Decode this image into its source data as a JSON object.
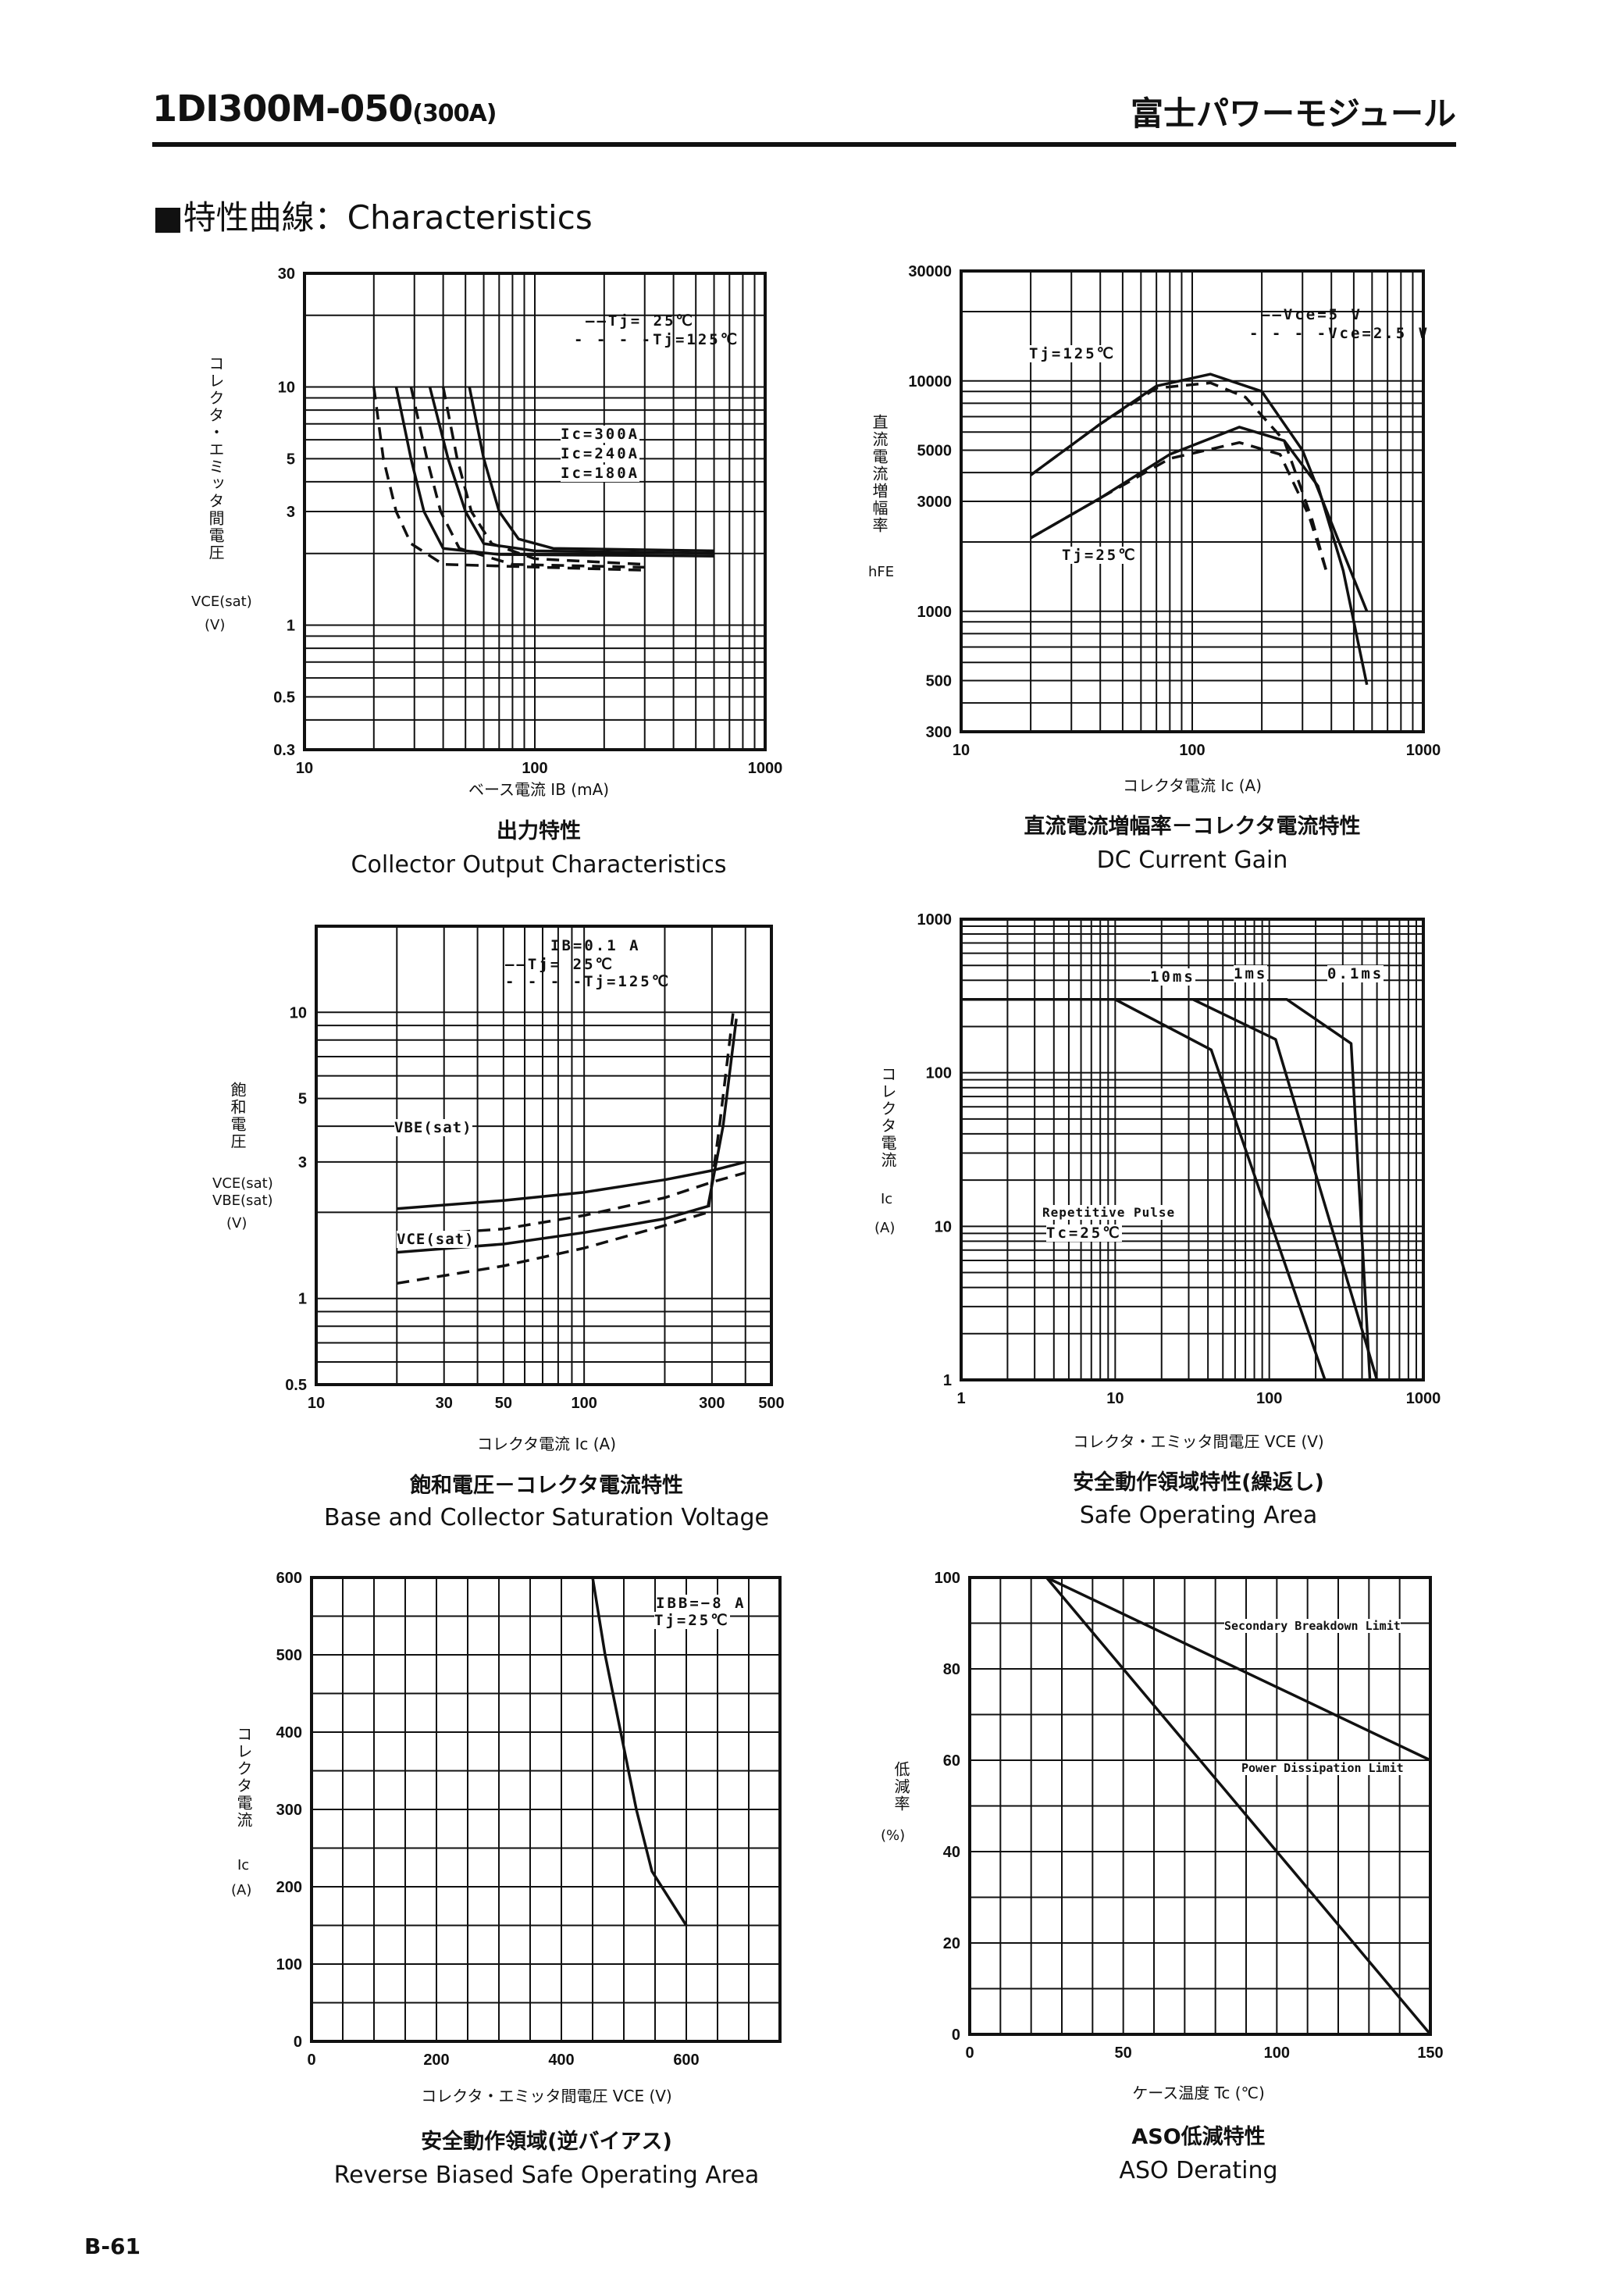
{
  "header": {
    "title": "1DI300M-050",
    "title_suffix": "(300A)",
    "brand": "富士パワーモジュール"
  },
  "section": {
    "title": "■特性曲線：Characteristics"
  },
  "footer": {
    "page": "B-61"
  },
  "charts": [
    {
      "title_jp": "出力特性",
      "title_en": "Collector Output Characteristics",
      "xlabel": "ベース電流 IB (mA)",
      "ylabel_jp": "コレクタ・エミッタ間電圧",
      "ylabel_sym": "VCE(sat)",
      "ylabel_unit": "(V)",
      "legend": [
        "——Tj=  25℃",
        "- - - -Tj=125℃"
      ],
      "annotations": [
        "Ic=300A",
        "Ic=240A",
        "Ic=180A"
      ]
    },
    {
      "title_jp": "直流電流増幅率－コレクタ電流特性",
      "title_en": "DC Current Gain",
      "xlabel": "コレクタ電流 Ic (A)",
      "ylabel_jp": "直流電流増幅率",
      "ylabel_sym": "hFE",
      "ylabel_unit": "",
      "legend": [
        "——Vce=5 V",
        "- - - -Vce=2.5 V"
      ],
      "annotations": [
        "Tj=125℃",
        "Tj=25℃"
      ]
    },
    {
      "title_jp": "飽和電圧－コレクタ電流特性",
      "title_en": "Base and Collector Saturation Voltage",
      "xlabel": "コレクタ電流 Ic (A)",
      "ylabel_jp": "飽和電圧",
      "ylabel_sym": "VCE(sat) VBE(sat)",
      "ylabel_unit": "(V)",
      "legend": [
        "IB=0.1 A",
        "——Tj=  25℃",
        "- - - -Tj=125℃"
      ],
      "annotations": [
        "VBE(sat)",
        "VCE(sat)"
      ]
    },
    {
      "title_jp": "安全動作領域特性(繰返し)",
      "title_en": "Safe Operating Area",
      "xlabel": "コレクタ・エミッタ間電圧 VCE (V)",
      "ylabel_jp": "コレクタ電流",
      "ylabel_sym": "Ic",
      "ylabel_unit": "(A)",
      "legend": [
        "Repetitive Pulse",
        "Tc=25℃"
      ],
      "annotations": [
        "10ms",
        "1ms",
        "0.1ms"
      ]
    },
    {
      "title_jp": "安全動作領域(逆バイアス)",
      "title_en": "Reverse Biased Safe Operating Area",
      "xlabel": "コレクタ・エミッタ間電圧 VCE (V)",
      "ylabel_jp": "コレクタ電流",
      "ylabel_sym": "Ic",
      "ylabel_unit": "(A)",
      "legend": [
        "IBB=−8 A",
        "Tj=25℃"
      ],
      "annotations": []
    },
    {
      "title_jp": "ASO低減特性",
      "title_en": "ASO Derating",
      "xlabel": "ケース温度 Tc (℃)",
      "ylabel_jp": "低減率",
      "ylabel_sym": "",
      "ylabel_unit": "(%)",
      "legend": [],
      "annotations": [
        "Secondary Breakdown Limit",
        "Power Dissipation Limit"
      ]
    }
  ],
  "chart_data": [
    {
      "type": "line",
      "xscale": "log",
      "yscale": "log",
      "xlim": [
        10,
        1000
      ],
      "ylim": [
        0.3,
        30
      ],
      "grid": true,
      "xticks": [
        "10",
        "100",
        "1000"
      ],
      "xtick_values": [
        10,
        100,
        1000
      ],
      "yticks": [
        "0.3",
        "0.5",
        "1",
        "3",
        "5",
        "10",
        "30"
      ],
      "ytick_values": [
        0.3,
        0.5,
        1,
        3,
        5,
        10,
        30
      ],
      "series": [
        {
          "name": "Ic=300A Tj=25℃",
          "dash": false,
          "points": [
            [
              52,
              10
            ],
            [
              60,
              5
            ],
            [
              70,
              3
            ],
            [
              85,
              2.3
            ],
            [
              120,
              2.1
            ],
            [
              600,
              2.05
            ]
          ]
        },
        {
          "name": "Ic=240A Tj=25℃",
          "dash": false,
          "points": [
            [
              35,
              10
            ],
            [
              42,
              5
            ],
            [
              50,
              3
            ],
            [
              60,
              2.2
            ],
            [
              100,
              2.05
            ],
            [
              600,
              2.0
            ]
          ]
        },
        {
          "name": "Ic=180A Tj=25℃",
          "dash": false,
          "points": [
            [
              25,
              10
            ],
            [
              29,
              5
            ],
            [
              33,
              3
            ],
            [
              40,
              2.1
            ],
            [
              70,
              1.98
            ],
            [
              600,
              1.95
            ]
          ]
        },
        {
          "name": "Ic=300A Tj=125℃",
          "dash": true,
          "points": [
            [
              40,
              10
            ],
            [
              46,
              5
            ],
            [
              53,
              3
            ],
            [
              65,
              2.2
            ],
            [
              100,
              1.9
            ],
            [
              300,
              1.8
            ]
          ]
        },
        {
          "name": "Ic=240A Tj=125℃",
          "dash": true,
          "points": [
            [
              29,
              10
            ],
            [
              34,
              5
            ],
            [
              39,
              3
            ],
            [
              47,
              2.1
            ],
            [
              80,
              1.8
            ],
            [
              300,
              1.75
            ]
          ]
        },
        {
          "name": "Ic=180A Tj=125℃",
          "dash": true,
          "points": [
            [
              20,
              10
            ],
            [
              22,
              5
            ],
            [
              25,
              3
            ],
            [
              29,
              2.2
            ],
            [
              40,
              1.8
            ],
            [
              300,
              1.7
            ]
          ]
        }
      ]
    },
    {
      "type": "line",
      "xscale": "log",
      "yscale": "log",
      "xlim": [
        10,
        1000
      ],
      "ylim": [
        300,
        30000
      ],
      "grid": true,
      "xticks": [
        "10",
        "100",
        "1000"
      ],
      "xtick_values": [
        10,
        100,
        1000
      ],
      "yticks": [
        "300",
        "500",
        "1000",
        "3000",
        "5000",
        "10000",
        "30000"
      ],
      "ytick_values": [
        300,
        500,
        1000,
        3000,
        5000,
        10000,
        30000
      ],
      "series": [
        {
          "name": "Tj=125℃ Vce=5V",
          "dash": false,
          "points": [
            [
              20,
              3900
            ],
            [
              40,
              6500
            ],
            [
              70,
              9500
            ],
            [
              120,
              10700
            ],
            [
              200,
              9000
            ],
            [
              300,
              5000
            ],
            [
              450,
              1800
            ],
            [
              570,
              1000
            ]
          ]
        },
        {
          "name": "Tj=125℃ Vce=2.5V",
          "dash": true,
          "points": [
            [
              20,
              3900
            ],
            [
              40,
              6500
            ],
            [
              70,
              9300
            ],
            [
              120,
              9800
            ],
            [
              170,
              8500
            ],
            [
              250,
              5500
            ],
            [
              330,
              2500
            ],
            [
              380,
              1500
            ]
          ]
        },
        {
          "name": "Tj=25℃ Vce=5V",
          "dash": false,
          "points": [
            [
              20,
              2080
            ],
            [
              40,
              3100
            ],
            [
              80,
              4800
            ],
            [
              160,
              6300
            ],
            [
              250,
              5500
            ],
            [
              350,
              3500
            ],
            [
              450,
              1500
            ],
            [
              570,
              480
            ]
          ]
        },
        {
          "name": "Tj=25℃ Vce=2.5V",
          "dash": true,
          "points": [
            [
              20,
              2080
            ],
            [
              40,
              3100
            ],
            [
              80,
              4600
            ],
            [
              160,
              5400
            ],
            [
              240,
              4800
            ],
            [
              320,
              2600
            ],
            [
              380,
              1500
            ]
          ]
        }
      ]
    },
    {
      "type": "line",
      "xscale": "log",
      "yscale": "log",
      "xlim": [
        10,
        500
      ],
      "ylim": [
        0.5,
        20
      ],
      "grid": true,
      "xticks": [
        "10",
        "30",
        "50",
        "100",
        "300",
        "500"
      ],
      "xtick_values": [
        10,
        30,
        50,
        100,
        300,
        500
      ],
      "yticks": [
        "0.5",
        "1",
        "3",
        "5",
        "10"
      ],
      "ytick_values": [
        0.5,
        1,
        3,
        5,
        10
      ],
      "series": [
        {
          "name": "VBE(sat) Tj=25℃",
          "dash": false,
          "points": [
            [
              20,
              2.06
            ],
            [
              50,
              2.2
            ],
            [
              100,
              2.35
            ],
            [
              200,
              2.6
            ],
            [
              300,
              2.8
            ],
            [
              400,
              3.0
            ]
          ]
        },
        {
          "name": "VBE(sat) Tj=125℃",
          "dash": true,
          "points": [
            [
              20,
              1.65
            ],
            [
              50,
              1.75
            ],
            [
              100,
              1.95
            ],
            [
              200,
              2.25
            ],
            [
              300,
              2.55
            ],
            [
              400,
              2.75
            ]
          ]
        },
        {
          "name": "VCE(sat) Tj=25℃",
          "dash": false,
          "points": [
            [
              20,
              1.45
            ],
            [
              50,
              1.55
            ],
            [
              100,
              1.7
            ],
            [
              200,
              1.9
            ],
            [
              290,
              2.1
            ],
            [
              330,
              4
            ],
            [
              370,
              9.5
            ]
          ]
        },
        {
          "name": "VCE(sat) Tj=125℃",
          "dash": true,
          "points": [
            [
              20,
              1.13
            ],
            [
              50,
              1.3
            ],
            [
              100,
              1.5
            ],
            [
              200,
              1.8
            ],
            [
              290,
              2.0
            ],
            [
              320,
              4
            ],
            [
              360,
              10
            ]
          ]
        }
      ]
    },
    {
      "type": "line",
      "xscale": "log",
      "yscale": "log",
      "xlim": [
        1,
        1000
      ],
      "ylim": [
        1,
        1000
      ],
      "grid": true,
      "xticks": [
        "1",
        "10",
        "100",
        "1000"
      ],
      "xtick_values": [
        1,
        10,
        100,
        1000
      ],
      "yticks": [
        "1",
        "10",
        "100",
        "1000"
      ],
      "ytick_values": [
        1,
        10,
        100,
        1000
      ],
      "series": [
        {
          "name": "10ms",
          "dash": false,
          "points": [
            [
              1,
              300
            ],
            [
              10,
              300
            ],
            [
              42,
              141
            ],
            [
              230,
              1
            ]
          ]
        },
        {
          "name": "1ms",
          "dash": false,
          "points": [
            [
              1,
              300
            ],
            [
              32,
              300
            ],
            [
              110,
              165
            ],
            [
              500,
              1
            ]
          ]
        },
        {
          "name": "0.1ms",
          "dash": false,
          "points": [
            [
              1,
              300
            ],
            [
              130,
              300
            ],
            [
              340,
              155
            ],
            [
              450,
              1
            ]
          ]
        }
      ]
    },
    {
      "type": "line",
      "xscale": "linear",
      "yscale": "linear",
      "xlim": [
        0,
        750
      ],
      "ylim": [
        0,
        600
      ],
      "grid": true,
      "xticks": [
        "0",
        "200",
        "400",
        "600"
      ],
      "xtick_values": [
        0,
        200,
        400,
        600
      ],
      "yticks": [
        "0",
        "100",
        "200",
        "300",
        "400",
        "500",
        "600"
      ],
      "ytick_values": [
        0,
        100,
        200,
        300,
        400,
        500,
        600
      ],
      "series": [
        {
          "dash": false,
          "points": [
            [
              450,
              600
            ],
            [
              470,
              500
            ],
            [
              495,
              400
            ],
            [
              520,
              300
            ],
            [
              545,
              220
            ],
            [
              600,
              150
            ]
          ]
        }
      ]
    },
    {
      "type": "line",
      "xscale": "linear",
      "yscale": "linear",
      "xlim": [
        0,
        150
      ],
      "ylim": [
        0,
        100
      ],
      "grid": true,
      "xticks": [
        "0",
        "50",
        "100",
        "150"
      ],
      "xtick_values": [
        0,
        50,
        100,
        150
      ],
      "yticks": [
        "0",
        "20",
        "40",
        "60",
        "80",
        "100"
      ],
      "ytick_values": [
        0,
        20,
        40,
        60,
        80,
        100
      ],
      "series": [
        {
          "name": "Secondary Breakdown Limit",
          "dash": false,
          "points": [
            [
              0,
              100
            ],
            [
              25,
              100
            ],
            [
              150,
              60
            ]
          ]
        },
        {
          "name": "Power Dissipation Limit",
          "dash": false,
          "points": [
            [
              0,
              100
            ],
            [
              25,
              100
            ],
            [
              150,
              0
            ]
          ]
        }
      ]
    }
  ]
}
